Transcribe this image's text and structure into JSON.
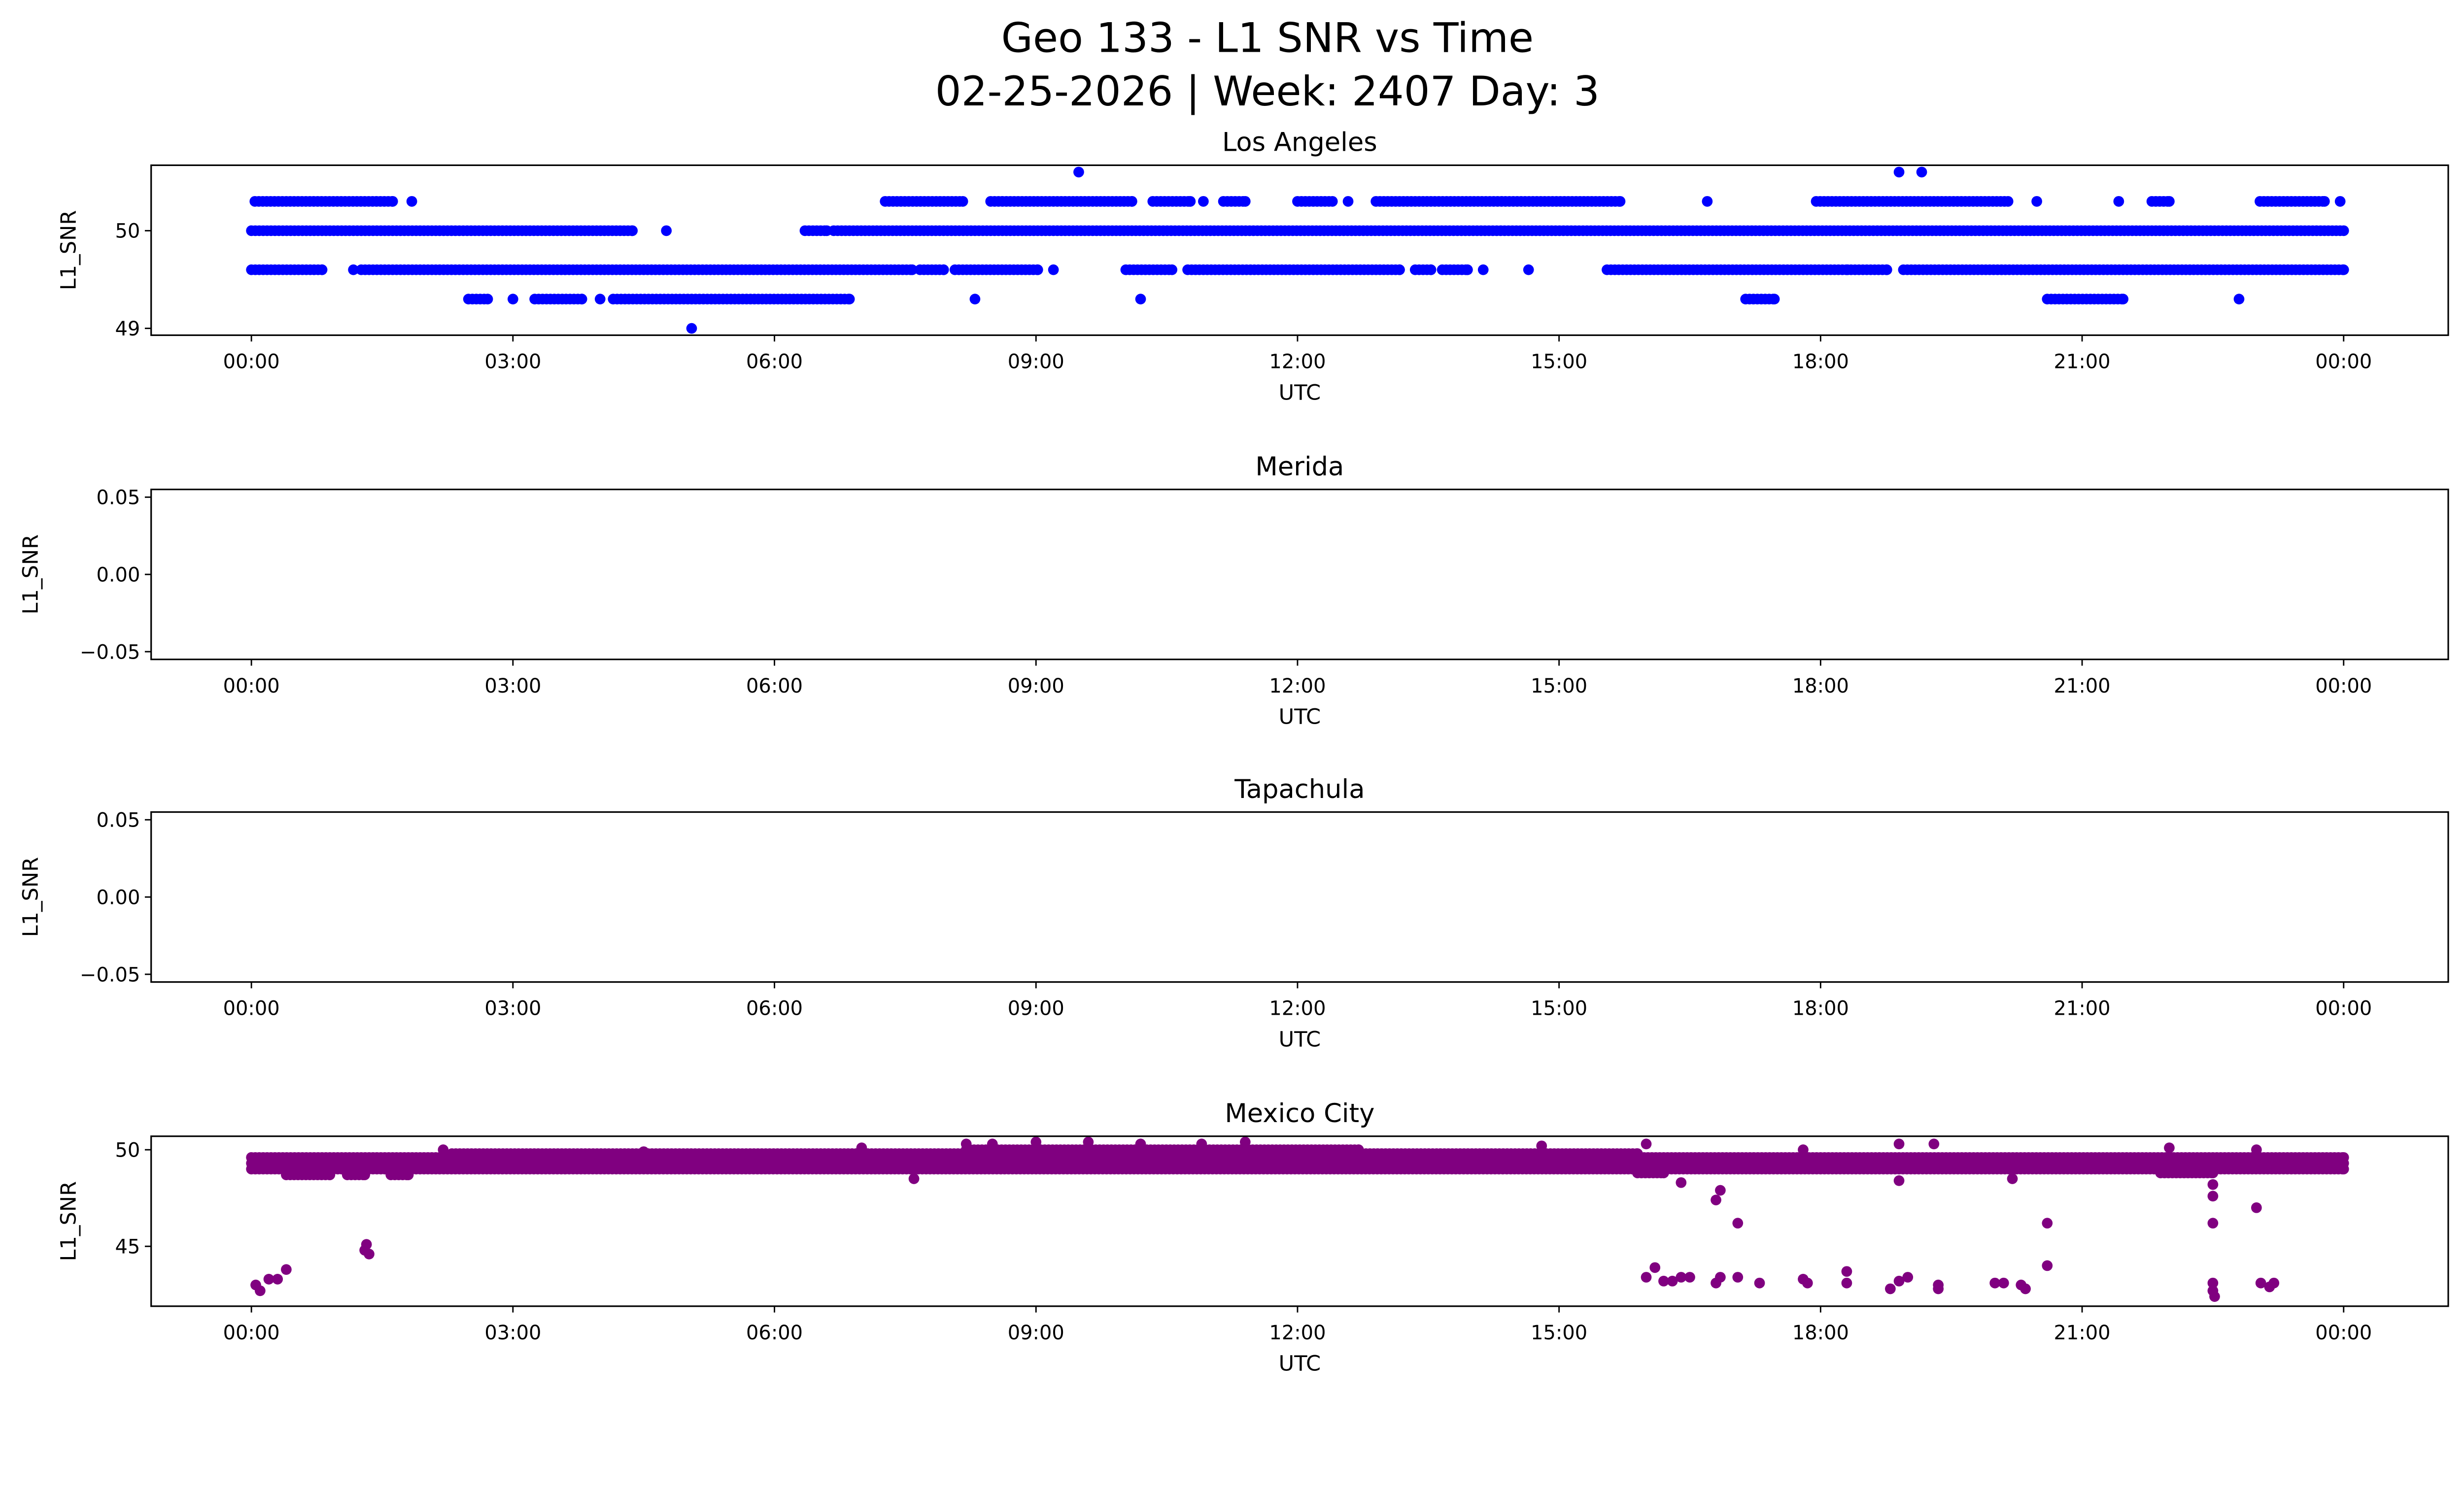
{
  "title_line1": "Geo 133 - L1 SNR vs Time",
  "title_line2": "02-25-2026 | Week: 2407 Day: 3",
  "chart_data": [
    {
      "type": "scatter",
      "title": "Los Angeles",
      "xlabel": "UTC",
      "ylabel": "L1_SNR",
      "color": "#0000ff",
      "xlim_hours": [
        -1.15,
        25.2
      ],
      "ylim": [
        48.93,
        50.67
      ],
      "xticks": [
        "00:00",
        "03:00",
        "06:00",
        "09:00",
        "12:00",
        "15:00",
        "18:00",
        "21:00",
        "00:00"
      ],
      "yticks": [
        {
          "v": 49,
          "label": "49"
        },
        {
          "v": 50,
          "label": "50"
        }
      ],
      "runs": [
        [
          0.04,
          1.62,
          50.3
        ],
        [
          1.84,
          1.84,
          50.3
        ],
        [
          7.27,
          8.16,
          50.3
        ],
        [
          8.48,
          10.1,
          50.3
        ],
        [
          10.34,
          10.77,
          50.3
        ],
        [
          10.92,
          10.92,
          50.3
        ],
        [
          11.15,
          11.4,
          50.3
        ],
        [
          12.0,
          12.4,
          50.3
        ],
        [
          12.58,
          12.58,
          50.3
        ],
        [
          12.9,
          15.7,
          50.3
        ],
        [
          16.7,
          16.7,
          50.3
        ],
        [
          17.95,
          20.15,
          50.3
        ],
        [
          20.48,
          20.48,
          50.3
        ],
        [
          21.42,
          21.42,
          50.3
        ],
        [
          21.8,
          22.0,
          50.3
        ],
        [
          23.04,
          23.78,
          50.3
        ],
        [
          23.96,
          23.96,
          50.3
        ],
        [
          9.49,
          9.49,
          50.6
        ],
        [
          18.9,
          18.9,
          50.6
        ],
        [
          19.16,
          19.16,
          50.6
        ],
        [
          0,
          4.37,
          50.0
        ],
        [
          4.76,
          4.76,
          50.0
        ],
        [
          6.35,
          6.6,
          50.0
        ],
        [
          6.68,
          24,
          50.0
        ],
        [
          0,
          0.81,
          49.6
        ],
        [
          1.17,
          1.17,
          49.6
        ],
        [
          1.26,
          7.58,
          49.6
        ],
        [
          7.67,
          7.94,
          49.6
        ],
        [
          8.07,
          9.02,
          49.6
        ],
        [
          9.2,
          9.2,
          49.6
        ],
        [
          10.03,
          10.56,
          49.6
        ],
        [
          10.74,
          13.17,
          49.6
        ],
        [
          13.35,
          13.53,
          49.6
        ],
        [
          13.66,
          13.95,
          49.6
        ],
        [
          14.13,
          14.13,
          49.6
        ],
        [
          14.65,
          14.65,
          49.6
        ],
        [
          15.55,
          18.31,
          49.6
        ],
        [
          18.35,
          18.76,
          49.6
        ],
        [
          18.95,
          24,
          49.6
        ],
        [
          2.49,
          2.71,
          49.3
        ],
        [
          3.0,
          3.0,
          49.3
        ],
        [
          3.25,
          3.79,
          49.3
        ],
        [
          4.0,
          4.0,
          49.3
        ],
        [
          4.15,
          6.86,
          49.3
        ],
        [
          8.3,
          8.3,
          49.3
        ],
        [
          10.2,
          10.2,
          49.3
        ],
        [
          17.14,
          17.47,
          49.3
        ],
        [
          20.6,
          21.47,
          49.3
        ],
        [
          22.8,
          22.8,
          49.3
        ],
        [
          5.05,
          5.05,
          49.0
        ]
      ],
      "points": []
    },
    {
      "type": "scatter",
      "title": "Merida",
      "xlabel": "UTC",
      "ylabel": "L1_SNR",
      "color": "#0000ff",
      "xlim_hours": [
        -1.15,
        25.2
      ],
      "ylim": [
        -0.055,
        0.055
      ],
      "xticks": [
        "00:00",
        "03:00",
        "06:00",
        "09:00",
        "12:00",
        "15:00",
        "18:00",
        "21:00",
        "00:00"
      ],
      "yticks": [
        {
          "v": -0.05,
          "label": "−0.05"
        },
        {
          "v": 0,
          "label": "0.00"
        },
        {
          "v": 0.05,
          "label": "0.05"
        }
      ],
      "runs": [],
      "points": []
    },
    {
      "type": "scatter",
      "title": "Tapachula",
      "xlabel": "UTC",
      "ylabel": "L1_SNR",
      "color": "#0000ff",
      "xlim_hours": [
        -1.15,
        25.2
      ],
      "ylim": [
        -0.055,
        0.055
      ],
      "xticks": [
        "00:00",
        "03:00",
        "06:00",
        "09:00",
        "12:00",
        "15:00",
        "18:00",
        "21:00",
        "00:00"
      ],
      "yticks": [
        {
          "v": -0.05,
          "label": "−0.05"
        },
        {
          "v": 0,
          "label": "0.00"
        },
        {
          "v": 0.05,
          "label": "0.05"
        }
      ],
      "runs": [],
      "points": []
    },
    {
      "type": "scatter",
      "title": "Mexico City",
      "xlabel": "UTC",
      "ylabel": "L1_SNR",
      "color": "#800080",
      "xlim_hours": [
        -1.15,
        25.2
      ],
      "ylim": [
        41.9,
        50.7
      ],
      "xticks": [
        "00:00",
        "03:00",
        "06:00",
        "09:00",
        "12:00",
        "15:00",
        "18:00",
        "21:00",
        "00:00"
      ],
      "yticks": [
        {
          "v": 45,
          "label": "45"
        },
        {
          "v": 50,
          "label": "50"
        }
      ],
      "runs": [
        [
          0,
          24,
          49.0
        ],
        [
          0,
          24,
          49.3
        ],
        [
          0,
          24,
          49.6
        ],
        [
          2.3,
          15.9,
          49.8
        ],
        [
          8.2,
          12.7,
          50.0
        ],
        [
          0.4,
          0.9,
          48.7
        ],
        [
          1.1,
          1.3,
          48.7
        ],
        [
          1.6,
          1.8,
          48.7
        ],
        [
          15.9,
          16.2,
          48.8
        ],
        [
          21.9,
          22.5,
          48.8
        ]
      ],
      "points": [
        [
          2.2,
          50.0
        ],
        [
          4.5,
          49.9
        ],
        [
          7.0,
          50.1
        ],
        [
          8.2,
          50.3
        ],
        [
          8.5,
          50.3
        ],
        [
          9.0,
          50.4
        ],
        [
          9.6,
          50.4
        ],
        [
          10.2,
          50.3
        ],
        [
          10.9,
          50.3
        ],
        [
          11.4,
          50.4
        ],
        [
          14.8,
          50.2
        ],
        [
          16.0,
          50.3
        ],
        [
          17.8,
          50.0
        ],
        [
          18.9,
          50.3
        ],
        [
          19.3,
          50.3
        ],
        [
          22.0,
          50.1
        ],
        [
          23.0,
          50.0
        ],
        [
          7.6,
          48.5
        ],
        [
          16.4,
          48.3
        ],
        [
          18.9,
          48.4
        ],
        [
          20.2,
          48.5
        ],
        [
          22.5,
          47.6
        ],
        [
          0.05,
          43.0
        ],
        [
          0.1,
          42.7
        ],
        [
          0.2,
          43.3
        ],
        [
          0.3,
          43.3
        ],
        [
          0.4,
          43.8
        ],
        [
          1.3,
          44.8
        ],
        [
          1.32,
          45.1
        ],
        [
          1.35,
          44.6
        ],
        [
          16.0,
          43.4
        ],
        [
          16.1,
          43.9
        ],
        [
          16.2,
          43.2
        ],
        [
          16.3,
          43.2
        ],
        [
          16.4,
          43.4
        ],
        [
          16.5,
          43.4
        ],
        [
          16.8,
          43.1
        ],
        [
          16.85,
          43.4
        ],
        [
          16.8,
          47.4
        ],
        [
          16.85,
          47.9
        ],
        [
          17.05,
          46.2
        ],
        [
          17.05,
          43.4
        ],
        [
          17.3,
          43.1
        ],
        [
          17.8,
          43.3
        ],
        [
          17.85,
          43.1
        ],
        [
          18.3,
          43.7
        ],
        [
          18.3,
          43.1
        ],
        [
          18.8,
          42.8
        ],
        [
          18.9,
          43.2
        ],
        [
          19.0,
          43.4
        ],
        [
          19.35,
          43.0
        ],
        [
          19.35,
          42.8
        ],
        [
          20.0,
          43.1
        ],
        [
          20.1,
          43.1
        ],
        [
          20.3,
          43.0
        ],
        [
          20.35,
          42.8
        ],
        [
          20.6,
          44.0
        ],
        [
          20.6,
          46.2
        ],
        [
          22.5,
          46.2
        ],
        [
          22.5,
          43.1
        ],
        [
          22.5,
          42.7
        ],
        [
          22.52,
          42.4
        ],
        [
          22.5,
          48.2
        ],
        [
          23.0,
          47.0
        ],
        [
          23.05,
          43.1
        ],
        [
          23.15,
          42.9
        ],
        [
          23.2,
          43.1
        ]
      ]
    }
  ]
}
